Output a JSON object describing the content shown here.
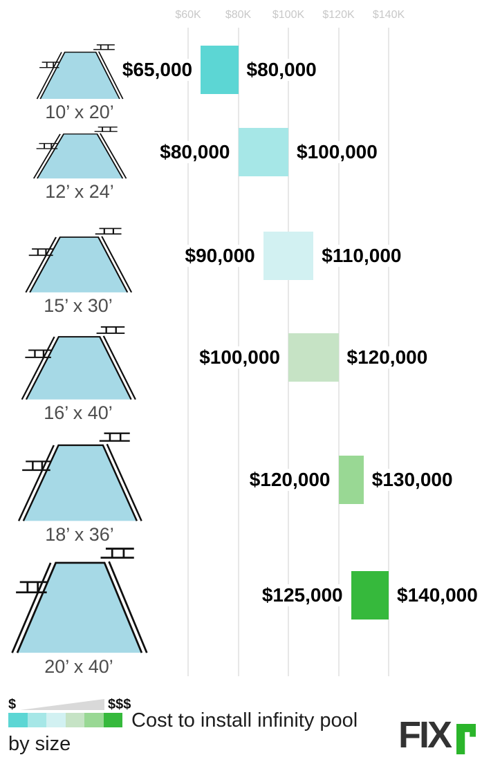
{
  "chart_data": {
    "type": "bar",
    "variant": "horizontal_range_bars",
    "title": "Cost to install infinity pool by size",
    "x_axis": {
      "tick_labels": [
        "$60K",
        "$80K",
        "$100K",
        "$120K",
        "$140K"
      ],
      "tick_values": [
        60000,
        80000,
        100000,
        120000,
        140000
      ],
      "unit": "USD",
      "xlim": [
        60000,
        140000
      ],
      "grid": true
    },
    "rows": [
      {
        "size": "10’ x 20’",
        "min": 65000,
        "max": 80000,
        "min_label": "$65,000",
        "max_label": "$80,000",
        "color": "#5cd6d4"
      },
      {
        "size": "12’ x 24’",
        "min": 80000,
        "max": 100000,
        "min_label": "$80,000",
        "max_label": "$100,000",
        "color": "#a6e7e7"
      },
      {
        "size": "15’ x 30’",
        "min": 90000,
        "max": 110000,
        "min_label": "$90,000",
        "max_label": "$110,000",
        "color": "#d2f1f2"
      },
      {
        "size": "16’ x 40’",
        "min": 100000,
        "max": 120000,
        "min_label": "$100,000",
        "max_label": "$120,000",
        "color": "#c6e3c5"
      },
      {
        "size": "18’ x 36’",
        "min": 120000,
        "max": 130000,
        "min_label": "$120,000",
        "max_label": "$130,000",
        "color": "#99d894"
      },
      {
        "size": "20’ x 40’",
        "min": 125000,
        "max": 140000,
        "min_label": "$125,000",
        "max_label": "$140,000",
        "color": "#36b93c"
      }
    ]
  },
  "legend": {
    "low_label": "$",
    "high_label": "$$$",
    "swatches": [
      "#5cd6d4",
      "#a6e7e7",
      "#d2f1f2",
      "#c6e3c5",
      "#99d894",
      "#36b93c"
    ],
    "title_line1": "Cost to install infinity pool",
    "title_line2": "by size",
    "wedge_color": "#d9d9d9"
  },
  "logo": {
    "text": "FIX",
    "accent": "r",
    "accent_color": "#2bb52b"
  },
  "pool": {
    "fill": "#a6d9e6",
    "outline": "#101010"
  }
}
